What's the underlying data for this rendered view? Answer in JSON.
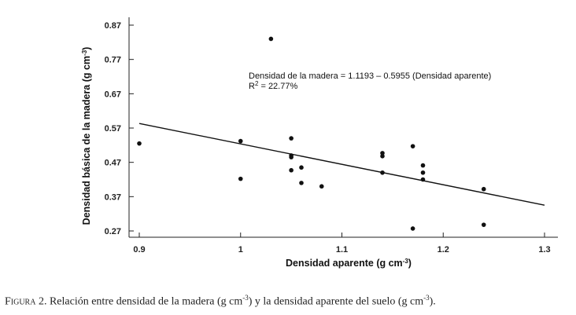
{
  "chart_data": {
    "type": "scatter",
    "x_label": "Densidad aparente (g cm",
    "x_label_sup": "-3",
    "x_label_end": ")",
    "y_label": "Densidad básica de la madera  (g cm",
    "y_label_sup": "-3",
    "y_label_end": ")",
    "xlim": [
      0.87,
      1.31
    ],
    "ylim": [
      0.25,
      0.885
    ],
    "x_ticks": [
      0.9,
      1.0,
      1.1,
      1.2,
      1.3
    ],
    "x_tick_labels": [
      "0.9",
      "1",
      "1.1",
      "1.2",
      "1.3"
    ],
    "y_ticks": [
      0.27,
      0.37,
      0.47,
      0.57,
      0.67,
      0.77,
      0.87
    ],
    "y_tick_labels": [
      "0.27",
      "0.37",
      "0.47",
      "0.57",
      "0.67",
      "0.77",
      "0.87"
    ],
    "points": [
      {
        "x": 0.9,
        "y": 0.525
      },
      {
        "x": 1.0,
        "y": 0.532
      },
      {
        "x": 1.0,
        "y": 0.422
      },
      {
        "x": 1.03,
        "y": 0.83
      },
      {
        "x": 1.05,
        "y": 0.54
      },
      {
        "x": 1.05,
        "y": 0.49
      },
      {
        "x": 1.05,
        "y": 0.485
      },
      {
        "x": 1.05,
        "y": 0.447
      },
      {
        "x": 1.06,
        "y": 0.455
      },
      {
        "x": 1.06,
        "y": 0.41
      },
      {
        "x": 1.08,
        "y": 0.4
      },
      {
        "x": 1.14,
        "y": 0.497
      },
      {
        "x": 1.14,
        "y": 0.488
      },
      {
        "x": 1.14,
        "y": 0.44
      },
      {
        "x": 1.17,
        "y": 0.517
      },
      {
        "x": 1.17,
        "y": 0.277
      },
      {
        "x": 1.18,
        "y": 0.461
      },
      {
        "x": 1.18,
        "y": 0.44
      },
      {
        "x": 1.18,
        "y": 0.42
      },
      {
        "x": 1.24,
        "y": 0.392
      },
      {
        "x": 1.24,
        "y": 0.288
      }
    ],
    "regression": {
      "intercept": 1.1193,
      "slope": -0.5955,
      "x_range": [
        0.9,
        1.3
      ]
    },
    "annotation": {
      "equation": "Densidad de la madera = 1.1193 – 0.5955 (Densidad aparente)",
      "r2_label": "R",
      "r2_sup": "2",
      "r2_value": " = 22.77%"
    }
  },
  "caption": {
    "prefix": "Figura 2.",
    "text": " Relación entre densidad de la madera (g cm",
    "sup1": "-3",
    "mid": ") y la densidad aparente del suelo (g cm",
    "sup2": "-3",
    "end": ")."
  }
}
